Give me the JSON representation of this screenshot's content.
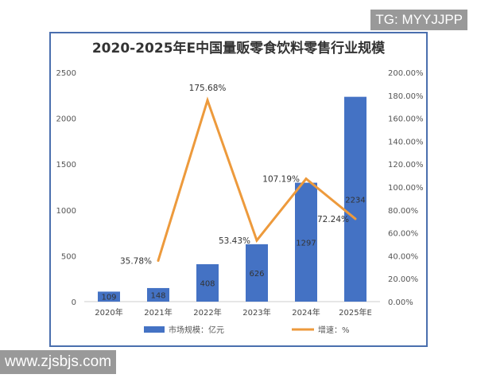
{
  "watermarks": {
    "top_right": "TG: MYYJJPP",
    "bottom_left": "www.zjsbjs.com"
  },
  "chart_data": {
    "type": "bar+line",
    "title": "2020-2025年E中国量贩零食饮料零售行业规模",
    "categories": [
      "2020年",
      "2021年",
      "2022年",
      "2023年",
      "2024年",
      "2025年E"
    ],
    "series": [
      {
        "name": "市场规模：亿元",
        "type": "bar",
        "axis": "left",
        "color": "#4472c4",
        "values": [
          109,
          148,
          408,
          626,
          1297,
          2234
        ],
        "labels": [
          "109",
          "148",
          "408",
          "626",
          "1297",
          "2234"
        ]
      },
      {
        "name": "增速：%",
        "type": "line",
        "axis": "right",
        "color": "#ed9a3c",
        "values": [
          null,
          35.78,
          175.68,
          53.43,
          107.19,
          72.24
        ],
        "labels": [
          "",
          "35.78%",
          "175.68%",
          "53.43%",
          "107.19%",
          "72.24%"
        ]
      }
    ],
    "y_left": {
      "range": [
        0,
        2500
      ],
      "ticks": [
        "0",
        "500",
        "1000",
        "1500",
        "2000",
        "2500"
      ]
    },
    "y_right": {
      "range": [
        0,
        200
      ],
      "ticks": [
        "0.00%",
        "20.00%",
        "40.00%",
        "60.00%",
        "80.00%",
        "100.00%",
        "120.00%",
        "140.00%",
        "160.00%",
        "180.00%",
        "200.00%"
      ]
    },
    "grid": false,
    "legend": "bottom"
  }
}
